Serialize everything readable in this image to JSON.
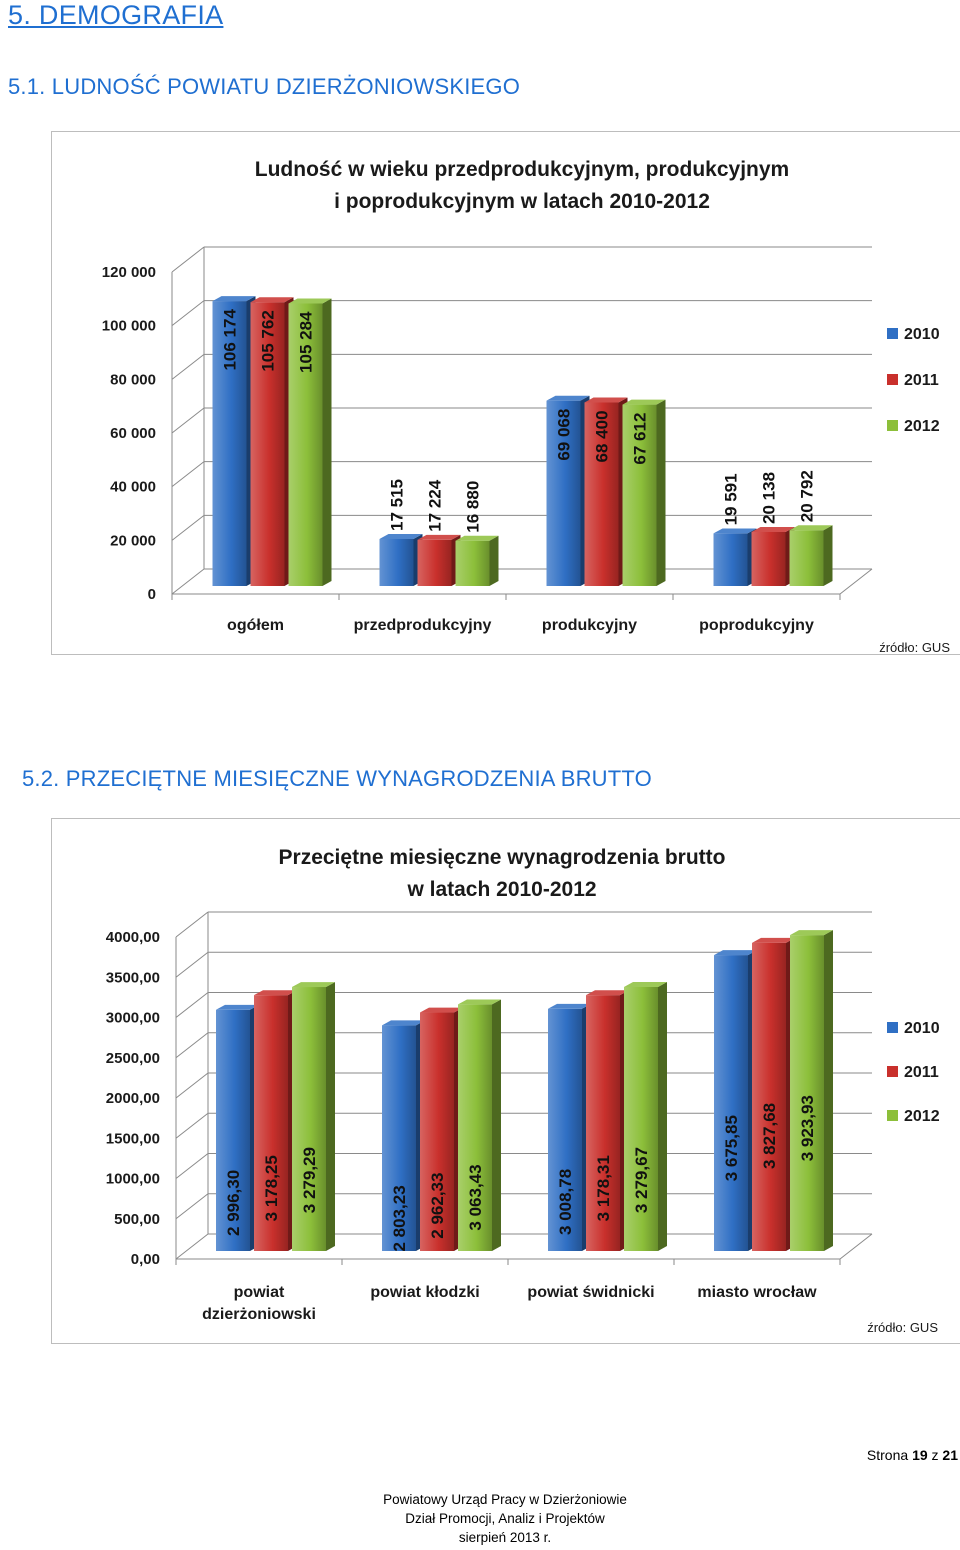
{
  "heading": "5. DEMOGRAFIA",
  "section1": {
    "title": "5.1. LUDNOŚĆ POWIATU DZIERŻONIOWSKIEGO"
  },
  "section2": {
    "title": "5.2. PRZECIĘTNE MIESIĘCZNE WYNAGRODZENIA BRUTTO"
  },
  "colors": {
    "2010": "#2f6fc4",
    "2011": "#c9302c",
    "2012": "#8cbf3a",
    "heading": "#1f6fd1"
  },
  "chart_data": [
    {
      "type": "bar",
      "title": "Ludność w wieku przedprodukcyjnym, produkcyjnym i poprodukcyjnym w latach 2010-2012",
      "title_lines": [
        "Ludność w wieku przedprodukcyjnym, produkcyjnym",
        "i poprodukcyjnym w latach 2010-2012"
      ],
      "categories": [
        "ogółem",
        "przedprodukcyjny",
        "produkcyjny",
        "poprodukcyjny"
      ],
      "category_lines": [
        [
          "ogółem"
        ],
        [
          "przedprodukcyjny"
        ],
        [
          "produkcyjny"
        ],
        [
          "poprodukcyjny"
        ]
      ],
      "series": [
        {
          "name": "2010",
          "values": [
            106174,
            17515,
            69068,
            19591
          ],
          "labels": [
            "106 174",
            "17 515",
            "69 068",
            "19 591"
          ]
        },
        {
          "name": "2011",
          "values": [
            105762,
            17224,
            68400,
            20138
          ],
          "labels": [
            "105 762",
            "17 224",
            "68 400",
            "20 138"
          ]
        },
        {
          "name": "2012",
          "values": [
            105284,
            16880,
            67612,
            20792
          ],
          "labels": [
            "105 284",
            "16 880",
            "67 612",
            "20 792"
          ]
        }
      ],
      "yticks": [
        0,
        20000,
        40000,
        60000,
        80000,
        100000,
        120000
      ],
      "ytick_labels": [
        "0",
        "20 000",
        "40 000",
        "60 000",
        "80 000",
        "100 000",
        "120 000"
      ],
      "ylim": [
        0,
        120000
      ],
      "legend": "right",
      "grid": true,
      "source": "źródło: GUS"
    },
    {
      "type": "bar",
      "title": "Przeciętne miesięczne wynagrodzenia brutto w latach 2010-2012",
      "title_lines": [
        "Przeciętne miesięczne wynagrodzenia brutto",
        "w latach 2010-2012"
      ],
      "categories": [
        "powiat dzierżoniowski",
        "powiat kłodzki",
        "powiat świdnicki",
        "miasto wrocław"
      ],
      "category_lines": [
        [
          "powiat",
          "dzierżoniowski"
        ],
        [
          "powiat kłodzki"
        ],
        [
          "powiat świdnicki"
        ],
        [
          "miasto wrocław"
        ]
      ],
      "series": [
        {
          "name": "2010",
          "values": [
            2996.3,
            2803.23,
            3008.78,
            3675.85
          ],
          "labels": [
            "2 996,30",
            "2 803,23",
            "3 008,78",
            "3 675,85"
          ]
        },
        {
          "name": "2011",
          "values": [
            3178.25,
            2962.33,
            3178.31,
            3827.68
          ],
          "labels": [
            "3 178,25",
            "2 962,33",
            "3 178,31",
            "3 827,68"
          ]
        },
        {
          "name": "2012",
          "values": [
            3279.29,
            3063.43,
            3279.67,
            3923.93
          ],
          "labels": [
            "3 279,29",
            "3 063,43",
            "3 279,67",
            "3 923,93"
          ]
        }
      ],
      "yticks": [
        0,
        500,
        1000,
        1500,
        2000,
        2500,
        3000,
        3500,
        4000
      ],
      "ytick_labels": [
        "0,00",
        "500,00",
        "1000,00",
        "1500,00",
        "2000,00",
        "2500,00",
        "3000,00",
        "3500,00",
        "4000,00"
      ],
      "ylim": [
        0,
        4000
      ],
      "legend": "right",
      "grid": true,
      "source": "źródło: GUS"
    }
  ],
  "page": {
    "label": "Strona",
    "current": "19",
    "of": "z",
    "total": "21"
  },
  "footer": {
    "line1": "Powiatowy Urząd Pracy w Dzierżoniowie",
    "line2": "Dział Promocji, Analiz i Projektów",
    "line3": "sierpień 2013 r."
  }
}
